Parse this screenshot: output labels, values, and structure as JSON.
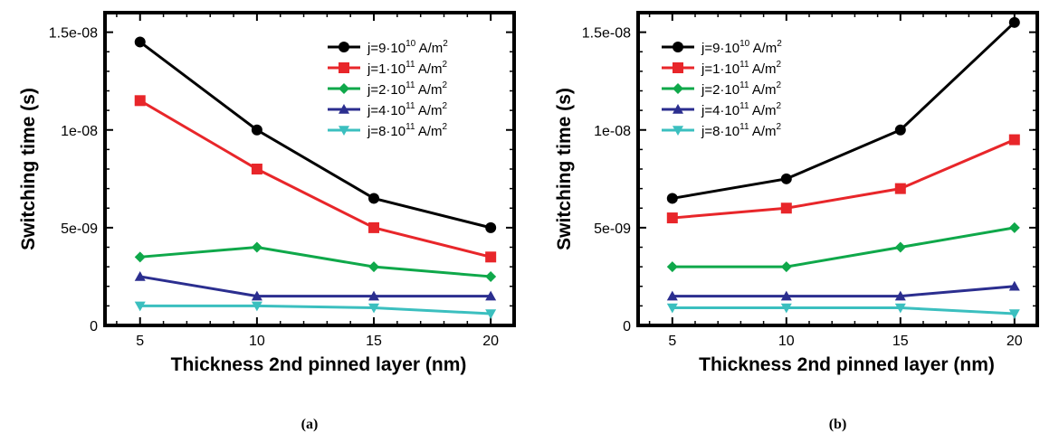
{
  "chart_data": [
    {
      "type": "line",
      "caption": "(a)",
      "xlabel": "Thickness 2nd pinned layer (nm)",
      "ylabel": "Switching time (s)",
      "x": [
        5,
        10,
        15,
        20
      ],
      "xticks": [
        "5",
        "10",
        "15",
        "20"
      ],
      "yticks": [
        {
          "value": 0,
          "label": "0"
        },
        {
          "value": 5e-09,
          "label": "5e-09"
        },
        {
          "value": 1e-08,
          "label": "1e-08"
        },
        {
          "value": 1.5e-08,
          "label": "1.5e-08"
        }
      ],
      "xlim": [
        3.5,
        21
      ],
      "ylim": [
        0,
        1.6e-08
      ],
      "legend_placement": "top-right",
      "series": [
        {
          "name": "j=9·10",
          "sup": "10",
          "unit": " A/m",
          "unit_sup": "2",
          "color": "#000000",
          "marker": "circle",
          "values": [
            1.45e-08,
            1e-08,
            6.5e-09,
            5e-09
          ]
        },
        {
          "name": "j=1·10",
          "sup": "11",
          "unit": " A/m",
          "unit_sup": "2",
          "color": "#e8262a",
          "marker": "square",
          "values": [
            1.15e-08,
            8e-09,
            5e-09,
            3.5e-09
          ]
        },
        {
          "name": "j=2·10",
          "sup": "11",
          "unit": " A/m",
          "unit_sup": "2",
          "color": "#0fa84a",
          "marker": "diamond",
          "values": [
            3.5e-09,
            4e-09,
            3e-09,
            2.5e-09
          ]
        },
        {
          "name": "j=4·10",
          "sup": "11",
          "unit": " A/m",
          "unit_sup": "2",
          "color": "#2b2e8f",
          "marker": "triangle-up",
          "values": [
            2.5e-09,
            1.5e-09,
            1.5e-09,
            1.5e-09
          ]
        },
        {
          "name": "j=8·10",
          "sup": "11",
          "unit": " A/m",
          "unit_sup": "2",
          "color": "#3bbfbf",
          "marker": "triangle-down",
          "values": [
            1e-09,
            1e-09,
            9e-10,
            6e-10
          ]
        }
      ]
    },
    {
      "type": "line",
      "caption": "(b)",
      "xlabel": "Thickness 2nd pinned layer (nm)",
      "ylabel": "Switching time (s)",
      "x": [
        5,
        10,
        15,
        20
      ],
      "xticks": [
        "5",
        "10",
        "15",
        "20"
      ],
      "yticks": [
        {
          "value": 0,
          "label": "0"
        },
        {
          "value": 5e-09,
          "label": "5e-09"
        },
        {
          "value": 1e-08,
          "label": "1e-08"
        },
        {
          "value": 1.5e-08,
          "label": "1.5e-08"
        }
      ],
      "xlim": [
        3.5,
        21
      ],
      "ylim": [
        0,
        1.6e-08
      ],
      "legend_placement": "top-left",
      "series": [
        {
          "name": "j=9·10",
          "sup": "10",
          "unit": " A/m",
          "unit_sup": "2",
          "color": "#000000",
          "marker": "circle",
          "values": [
            6.5e-09,
            7.5e-09,
            1e-08,
            1.55e-08
          ]
        },
        {
          "name": "j=1·10",
          "sup": "11",
          "unit": " A/m",
          "unit_sup": "2",
          "color": "#e8262a",
          "marker": "square",
          "values": [
            5.5e-09,
            6e-09,
            7e-09,
            9.5e-09
          ]
        },
        {
          "name": "j=2·10",
          "sup": "11",
          "unit": " A/m",
          "unit_sup": "2",
          "color": "#0fa84a",
          "marker": "diamond",
          "values": [
            3e-09,
            3e-09,
            4e-09,
            5e-09
          ]
        },
        {
          "name": "j=4·10",
          "sup": "11",
          "unit": " A/m",
          "unit_sup": "2",
          "color": "#2b2e8f",
          "marker": "triangle-up",
          "values": [
            1.5e-09,
            1.5e-09,
            1.5e-09,
            2e-09
          ]
        },
        {
          "name": "j=8·10",
          "sup": "11",
          "unit": " A/m",
          "unit_sup": "2",
          "color": "#3bbfbf",
          "marker": "triangle-down",
          "values": [
            9e-10,
            9e-10,
            9e-10,
            6e-10
          ]
        }
      ]
    }
  ]
}
